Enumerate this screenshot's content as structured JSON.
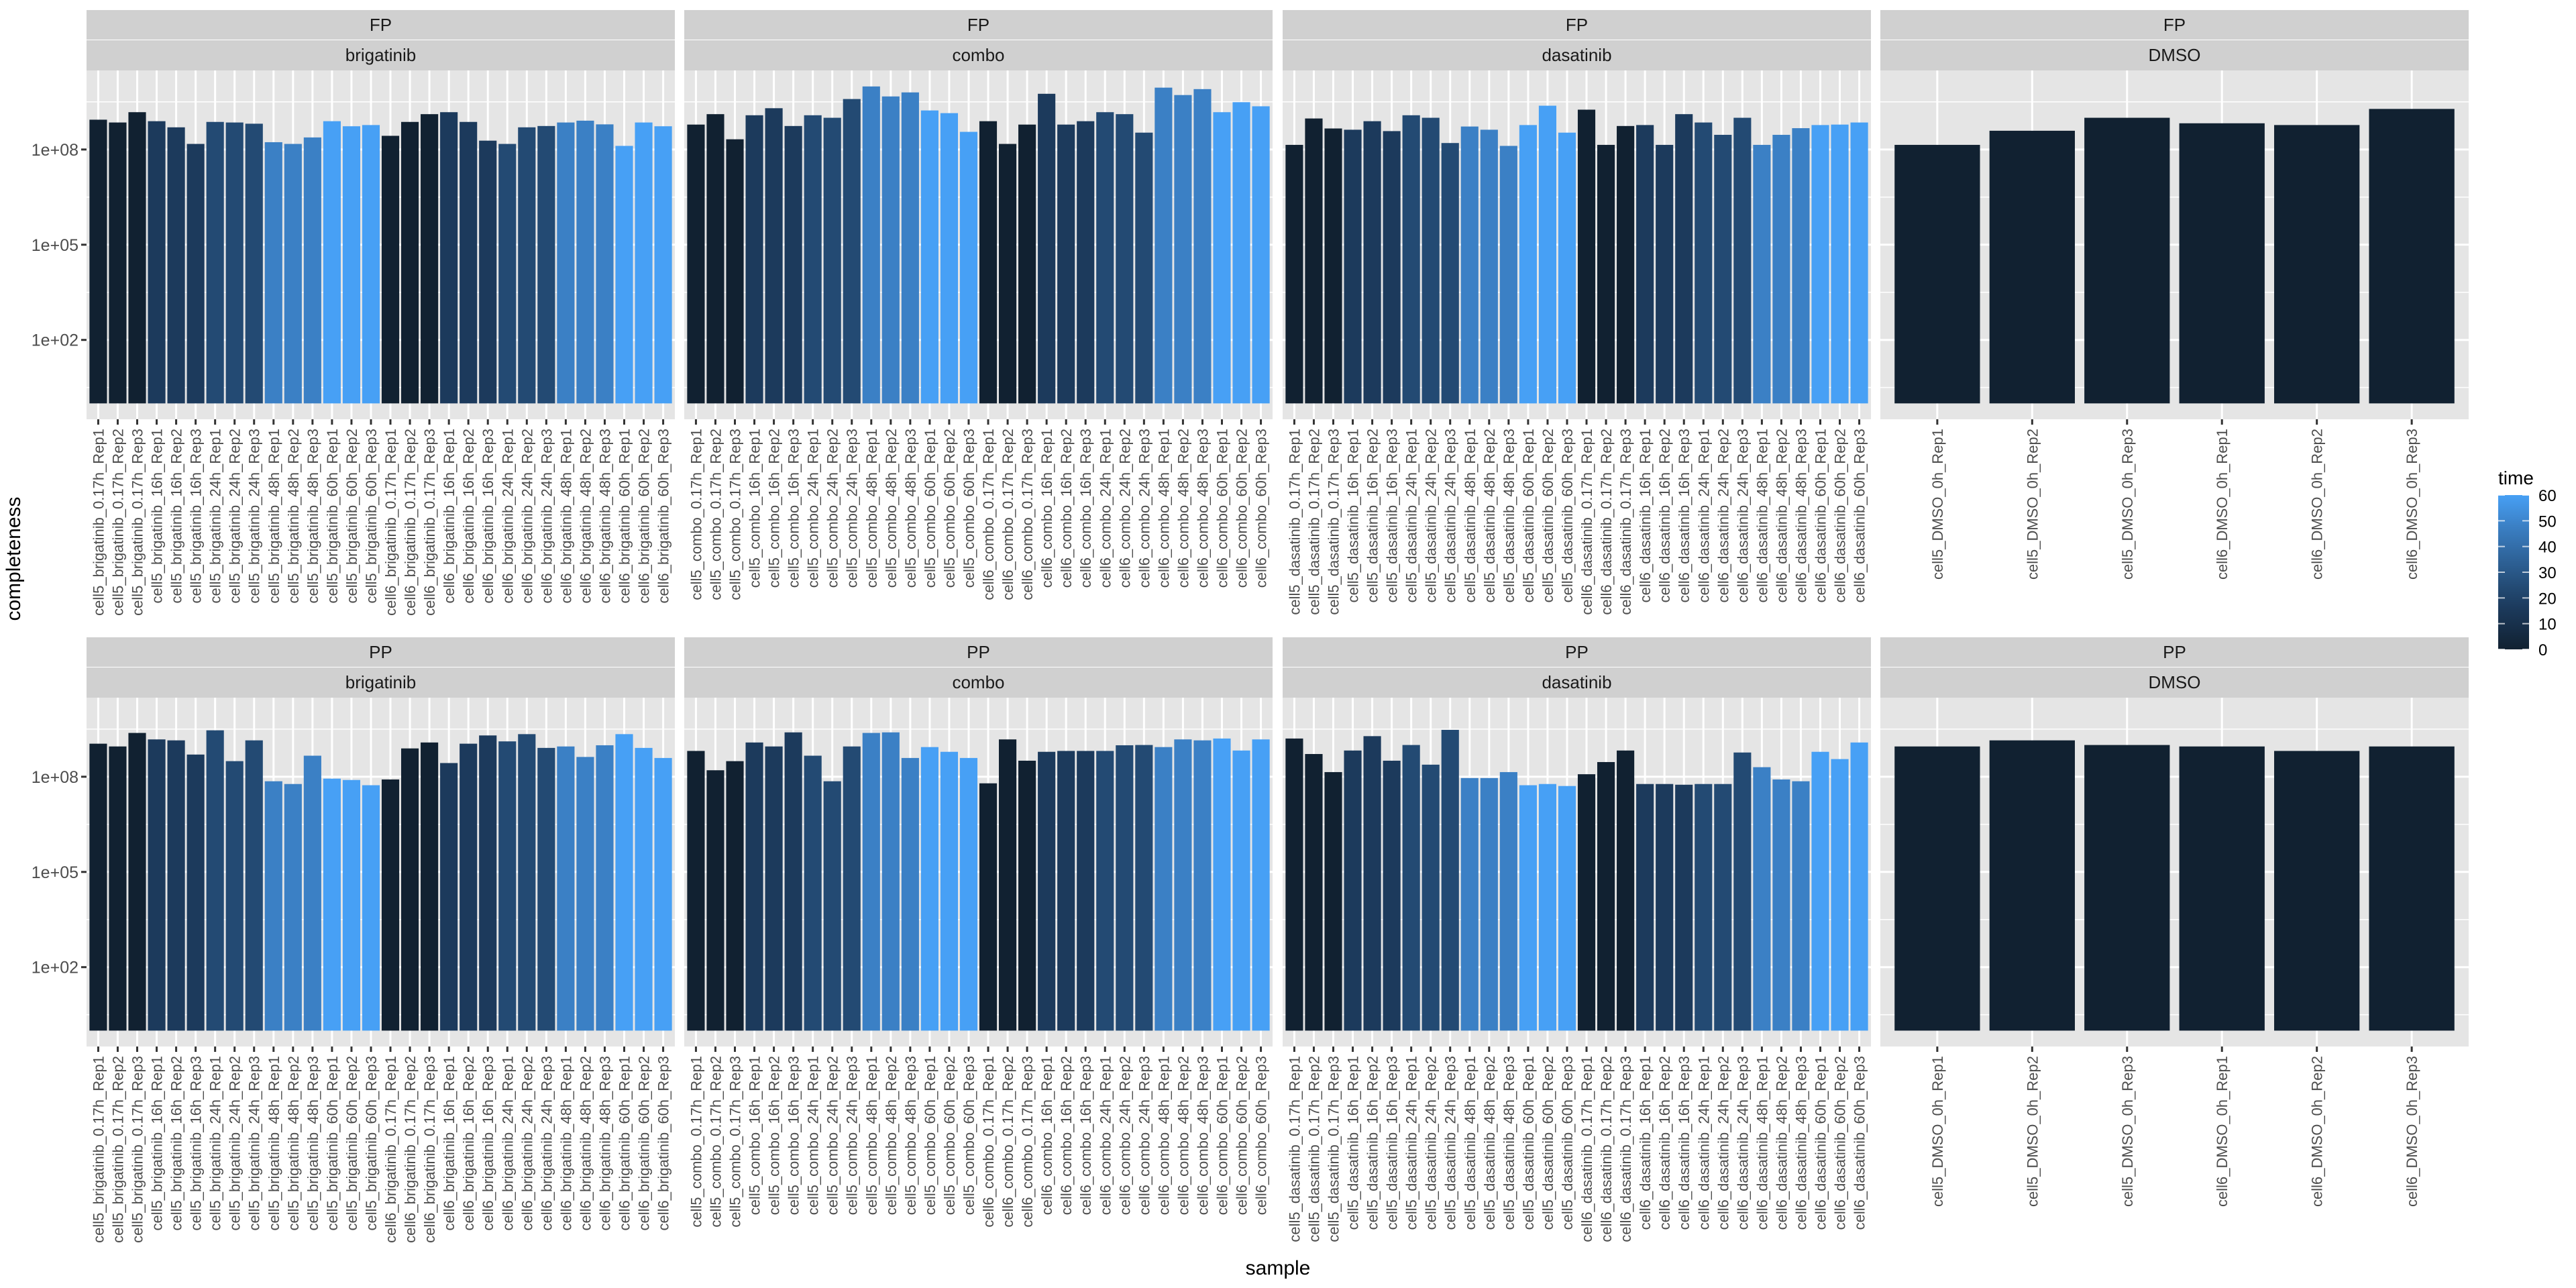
{
  "chart_data": {
    "type": "bar",
    "title": "",
    "xlabel": "sample",
    "ylabel": "completeness",
    "yscale": "log10",
    "ylim": [
      0.316,
      31000000000
    ],
    "grid": true,
    "yticks": [
      {
        "value": 100,
        "label": "1e+02"
      },
      {
        "value": 100000,
        "label": "1e+05"
      },
      {
        "value": 100000000,
        "label": "1e+08"
      }
    ],
    "legend": {
      "title": "time",
      "placement": "right",
      "ticks": [
        0,
        10,
        20,
        30,
        40,
        50,
        60
      ],
      "range": [
        0,
        60
      ],
      "color_stops": [
        {
          "t": 0,
          "color": "#112131"
        },
        {
          "t": 16,
          "color": "#1c3a5c"
        },
        {
          "t": 24,
          "color": "#234a73"
        },
        {
          "t": 48,
          "color": "#3b80c5"
        },
        {
          "t": 60,
          "color": "#47a0f5"
        }
      ]
    },
    "rows": [
      "FP",
      "PP"
    ],
    "cols": [
      "brigatinib",
      "combo",
      "dasatinib",
      "DMSO"
    ],
    "x_categories": {
      "brigatinib": [
        "cell5_brigatinib_0.17h_Rep1",
        "cell5_brigatinib_0.17h_Rep2",
        "cell5_brigatinib_0.17h_Rep3",
        "cell5_brigatinib_16h_Rep1",
        "cell5_brigatinib_16h_Rep2",
        "cell5_brigatinib_16h_Rep3",
        "cell5_brigatinib_24h_Rep1",
        "cell5_brigatinib_24h_Rep2",
        "cell5_brigatinib_24h_Rep3",
        "cell5_brigatinib_48h_Rep1",
        "cell5_brigatinib_48h_Rep2",
        "cell5_brigatinib_48h_Rep3",
        "cell5_brigatinib_60h_Rep1",
        "cell5_brigatinib_60h_Rep2",
        "cell5_brigatinib_60h_Rep3",
        "cell6_brigatinib_0.17h_Rep1",
        "cell6_brigatinib_0.17h_Rep2",
        "cell6_brigatinib_0.17h_Rep3",
        "cell6_brigatinib_16h_Rep1",
        "cell6_brigatinib_16h_Rep2",
        "cell6_brigatinib_16h_Rep3",
        "cell6_brigatinib_24h_Rep1",
        "cell6_brigatinib_24h_Rep2",
        "cell6_brigatinib_24h_Rep3",
        "cell6_brigatinib_48h_Rep1",
        "cell6_brigatinib_48h_Rep2",
        "cell6_brigatinib_48h_Rep3",
        "cell6_brigatinib_60h_Rep1",
        "cell6_brigatinib_60h_Rep2",
        "cell6_brigatinib_60h_Rep3"
      ],
      "combo": [
        "cell5_combo_0.17h_Rep1",
        "cell5_combo_0.17h_Rep2",
        "cell5_combo_0.17h_Rep3",
        "cell5_combo_16h_Rep1",
        "cell5_combo_16h_Rep2",
        "cell5_combo_16h_Rep3",
        "cell5_combo_24h_Rep1",
        "cell5_combo_24h_Rep2",
        "cell5_combo_24h_Rep3",
        "cell5_combo_48h_Rep1",
        "cell5_combo_48h_Rep2",
        "cell5_combo_48h_Rep3",
        "cell5_combo_60h_Rep1",
        "cell5_combo_60h_Rep2",
        "cell5_combo_60h_Rep3",
        "cell6_combo_0.17h_Rep1",
        "cell6_combo_0.17h_Rep2",
        "cell6_combo_0.17h_Rep3",
        "cell6_combo_16h_Rep1",
        "cell6_combo_16h_Rep2",
        "cell6_combo_16h_Rep3",
        "cell6_combo_24h_Rep1",
        "cell6_combo_24h_Rep2",
        "cell6_combo_24h_Rep3",
        "cell6_combo_48h_Rep1",
        "cell6_combo_48h_Rep2",
        "cell6_combo_48h_Rep3",
        "cell6_combo_60h_Rep1",
        "cell6_combo_60h_Rep2",
        "cell6_combo_60h_Rep3"
      ],
      "dasatinib": [
        "cell5_dasatinib_0.17h_Rep1",
        "cell5_dasatinib_0.17h_Rep2",
        "cell5_dasatinib_0.17h_Rep3",
        "cell5_dasatinib_16h_Rep1",
        "cell5_dasatinib_16h_Rep2",
        "cell5_dasatinib_16h_Rep3",
        "cell5_dasatinib_24h_Rep1",
        "cell5_dasatinib_24h_Rep2",
        "cell5_dasatinib_24h_Rep3",
        "cell5_dasatinib_48h_Rep1",
        "cell5_dasatinib_48h_Rep2",
        "cell5_dasatinib_48h_Rep3",
        "cell5_dasatinib_60h_Rep1",
        "cell5_dasatinib_60h_Rep2",
        "cell5_dasatinib_60h_Rep3",
        "cell6_dasatinib_0.17h_Rep1",
        "cell6_dasatinib_0.17h_Rep2",
        "cell6_dasatinib_0.17h_Rep3",
        "cell6_dasatinib_16h_Rep1",
        "cell6_dasatinib_16h_Rep2",
        "cell6_dasatinib_16h_Rep3",
        "cell6_dasatinib_24h_Rep1",
        "cell6_dasatinib_24h_Rep2",
        "cell6_dasatinib_24h_Rep3",
        "cell6_dasatinib_48h_Rep1",
        "cell6_dasatinib_48h_Rep2",
        "cell6_dasatinib_48h_Rep3",
        "cell6_dasatinib_60h_Rep1",
        "cell6_dasatinib_60h_Rep2",
        "cell6_dasatinib_60h_Rep3"
      ],
      "DMSO": [
        "cell5_DMSO_0h_Rep1",
        "cell5_DMSO_0h_Rep2",
        "cell5_DMSO_0h_Rep3",
        "cell6_DMSO_0h_Rep1",
        "cell6_DMSO_0h_Rep2",
        "cell6_DMSO_0h_Rep3"
      ]
    },
    "x_time": {
      "brigatinib": [
        0.17,
        0.17,
        0.17,
        16,
        16,
        16,
        24,
        24,
        24,
        48,
        48,
        48,
        60,
        60,
        60,
        0.17,
        0.17,
        0.17,
        16,
        16,
        16,
        24,
        24,
        24,
        48,
        48,
        48,
        60,
        60,
        60
      ],
      "combo": [
        0.17,
        0.17,
        0.17,
        16,
        16,
        16,
        24,
        24,
        24,
        48,
        48,
        48,
        60,
        60,
        60,
        0.17,
        0.17,
        0.17,
        16,
        16,
        16,
        24,
        24,
        24,
        48,
        48,
        48,
        60,
        60,
        60
      ],
      "dasatinib": [
        0.17,
        0.17,
        0.17,
        16,
        16,
        16,
        24,
        24,
        24,
        48,
        48,
        48,
        60,
        60,
        60,
        0.17,
        0.17,
        0.17,
        16,
        16,
        16,
        24,
        24,
        24,
        48,
        48,
        48,
        60,
        60,
        60
      ],
      "DMSO": [
        0,
        0,
        0,
        0,
        0,
        0
      ]
    },
    "panels": [
      {
        "row": "FP",
        "col": "brigatinib",
        "values": [
          870000000.0,
          710000000.0,
          1500000000.0,
          780000000.0,
          500000000.0,
          150000000.0,
          740000000.0,
          710000000.0,
          650000000.0,
          170000000.0,
          150000000.0,
          240000000.0,
          780000000.0,
          540000000.0,
          590000000.0,
          270000000.0,
          740000000.0,
          1300000000.0,
          1500000000.0,
          740000000.0,
          190000000.0,
          150000000.0,
          500000000.0,
          550000000.0,
          710000000.0,
          810000000.0,
          620000000.0,
          130000000.0,
          710000000.0,
          540000000.0
        ]
      },
      {
        "row": "FP",
        "col": "combo",
        "values": [
          610000000.0,
          1300000000.0,
          210000000.0,
          1200000000.0,
          2000000000.0,
          550000000.0,
          1200000000.0,
          1000000000.0,
          3900000000.0,
          9700000000.0,
          4700000000.0,
          6300000000.0,
          1700000000.0,
          1400000000.0,
          360000000.0,
          780000000.0,
          150000000.0,
          610000000.0,
          5700000000.0,
          610000000.0,
          780000000.0,
          1500000000.0,
          1300000000.0,
          340000000.0,
          8900000000.0,
          5200000000.0,
          8000000000.0,
          1500000000.0,
          3100000000.0,
          2300000000.0
        ]
      },
      {
        "row": "FP",
        "col": "dasatinib",
        "values": [
          140000000.0,
          950000000.0,
          460000000.0,
          420000000.0,
          780000000.0,
          380000000.0,
          1200000000.0,
          1000000000.0,
          160000000.0,
          530000000.0,
          420000000.0,
          130000000.0,
          590000000.0,
          2400000000.0,
          340000000.0,
          1800000000.0,
          140000000.0,
          550000000.0,
          590000000.0,
          140000000.0,
          1300000000.0,
          710000000.0,
          290000000.0,
          1000000000.0,
          140000000.0,
          290000000.0,
          470000000.0,
          590000000.0,
          610000000.0,
          710000000.0
        ]
      },
      {
        "row": "FP",
        "col": "DMSO",
        "values": [
          140000000.0,
          390000000.0,
          1000000000.0,
          670000000.0,
          590000000.0,
          1900000000.0
        ]
      },
      {
        "row": "PP",
        "col": "brigatinib",
        "values": [
          1100000000.0,
          900000000.0,
          2400000000.0,
          1500000000.0,
          1400000000.0,
          500000000.0,
          2900000000.0,
          310000000.0,
          1400000000.0,
          72000000.0,
          59000000.0,
          460000000.0,
          87000000.0,
          79000000.0,
          54000000.0,
          82000000.0,
          780000000.0,
          1200000000.0,
          270000000.0,
          1100000000.0,
          2000000000.0,
          1300000000.0,
          2200000000.0,
          810000000.0,
          900000000.0,
          420000000.0,
          980000000.0,
          2200000000.0,
          810000000.0,
          390000000.0
        ]
      },
      {
        "row": "PP",
        "col": "combo",
        "values": [
          650000000.0,
          160000000.0,
          310000000.0,
          1200000000.0,
          900000000.0,
          2500000000.0,
          460000000.0,
          72000000.0,
          900000000.0,
          2400000000.0,
          2500000000.0,
          390000000.0,
          860000000.0,
          610000000.0,
          390000000.0,
          62000000.0,
          1500000000.0,
          320000000.0,
          610000000.0,
          650000000.0,
          650000000.0,
          650000000.0,
          980000000.0,
          1000000000.0,
          860000000.0,
          1500000000.0,
          1400000000.0,
          1600000000.0,
          670000000.0,
          1500000000.0
        ]
      },
      {
        "row": "PP",
        "col": "dasatinib",
        "values": [
          1600000000.0,
          520000000.0,
          140000000.0,
          670000000.0,
          1900000000.0,
          320000000.0,
          1000000000.0,
          240000000.0,
          3000000000.0,
          91000000.0,
          91000000.0,
          140000000.0,
          54000000.0,
          59000000.0,
          51000000.0,
          120000000.0,
          290000000.0,
          670000000.0,
          59000000.0,
          59000000.0,
          56000000.0,
          59000000.0,
          59000000.0,
          580000000.0,
          200000000.0,
          82000000.0,
          72000000.0,
          610000000.0,
          360000000.0,
          1200000000.0
        ]
      },
      {
        "row": "PP",
        "col": "DMSO",
        "values": [
          900000000.0,
          1400000000.0,
          1000000000.0,
          900000000.0,
          650000000.0,
          900000000.0
        ]
      }
    ]
  }
}
